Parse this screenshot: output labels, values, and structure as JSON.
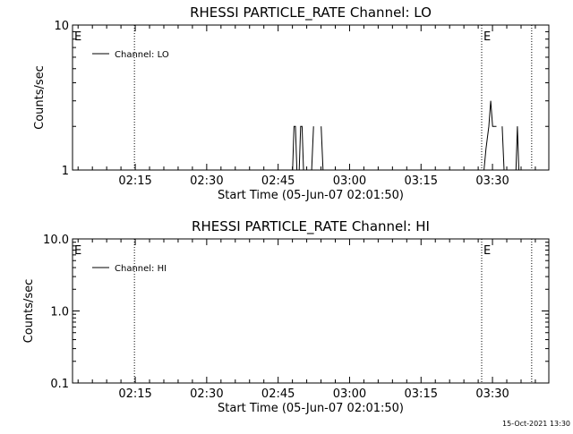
{
  "stamp": "15-Oct-2021 13:30",
  "chart_data": [
    {
      "type": "line",
      "title": "RHESSI PARTICLE_RATE Channel: LO",
      "xlabel": "Start Time (05-Jun-07 02:01:50)",
      "ylabel": "Counts/sec",
      "xlim_minutes_after_start": [
        0,
        100
      ],
      "xtick_labels": [
        "02:15",
        "02:30",
        "02:45",
        "03:00",
        "03:15",
        "03:30"
      ],
      "xtick_minutes_after_start": [
        13.17,
        28.17,
        43.17,
        58.17,
        73.17,
        88.17
      ],
      "ylim": [
        1,
        10
      ],
      "yscale": "log",
      "ytick_labels": [
        "1",
        "10"
      ],
      "grid": false,
      "legend": "top-left",
      "series": [
        {
          "name": "Channel: LO",
          "x": [
            46.2,
            46.5,
            46.8,
            47.1,
            47.6,
            47.9,
            48.2,
            48.5,
            50.2,
            50.6,
            52.2,
            52.6,
            86.4,
            86.8,
            87.4,
            87.8,
            88.2,
            88.6,
            89.0,
            90.2,
            90.6,
            93.1,
            93.4,
            93.7
          ],
          "y": [
            1,
            2,
            2,
            1,
            1,
            2,
            2,
            1,
            1,
            2,
            2,
            1,
            1,
            1.4,
            2,
            3,
            2,
            2,
            2,
            2,
            1,
            1,
            2,
            1
          ]
        }
      ],
      "vlines_dotted": [
        {
          "label": "E",
          "x": 0
        },
        {
          "label": "",
          "x": 13
        },
        {
          "label": "E",
          "x": 85.9
        },
        {
          "label": "",
          "x": 96.4
        }
      ]
    },
    {
      "type": "line",
      "title": "RHESSI PARTICLE_RATE Channel: HI",
      "xlabel": "Start Time (05-Jun-07 02:01:50)",
      "ylabel": "Counts/sec",
      "xlim_minutes_after_start": [
        0,
        100
      ],
      "xtick_labels": [
        "02:15",
        "02:30",
        "02:45",
        "03:00",
        "03:15",
        "03:30"
      ],
      "xtick_minutes_after_start": [
        13.17,
        28.17,
        43.17,
        58.17,
        73.17,
        88.17
      ],
      "ylim": [
        0.1,
        10
      ],
      "yscale": "log",
      "ytick_labels": [
        "0.1",
        "1.0",
        "10.0"
      ],
      "grid": false,
      "legend": "top-left",
      "series": [
        {
          "name": "Channel: HI",
          "x": [],
          "y": []
        }
      ],
      "vlines_dotted": [
        {
          "label": "E",
          "x": 0
        },
        {
          "label": "",
          "x": 13
        },
        {
          "label": "E",
          "x": 85.9
        },
        {
          "label": "",
          "x": 96.4
        }
      ]
    }
  ]
}
